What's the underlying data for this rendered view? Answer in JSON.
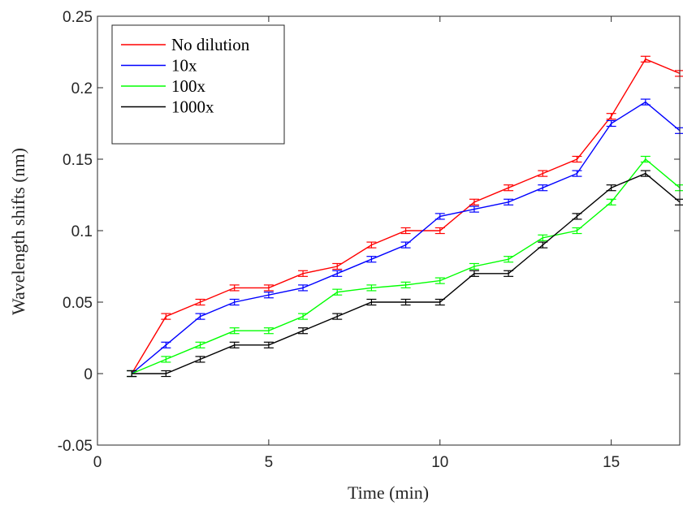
{
  "chart_data": {
    "type": "line",
    "xlabel": "Time (min)",
    "ylabel": "Wavelength shifts (nm)",
    "xlim": [
      0,
      17
    ],
    "ylim": [
      -0.05,
      0.25
    ],
    "xticks": [
      0,
      5,
      10,
      15
    ],
    "xtick_labels": [
      "0",
      "5",
      "10",
      "15"
    ],
    "yticks": [
      -0.05,
      0,
      0.05,
      0.1,
      0.15,
      0.2,
      0.25
    ],
    "ytick_labels": [
      "-0.05",
      "0",
      "0.05",
      "0.1",
      "0.15",
      "0.2",
      "0.25"
    ],
    "grid": false,
    "legend_position": "top-left",
    "x": [
      1,
      2,
      3,
      4,
      5,
      6,
      7,
      8,
      9,
      10,
      11,
      12,
      13,
      14,
      15,
      16,
      17
    ],
    "series": [
      {
        "name": "No dilution",
        "color": "#ff0000",
        "values": [
          0,
          0.04,
          0.05,
          0.06,
          0.06,
          0.07,
          0.075,
          0.09,
          0.1,
          0.1,
          0.12,
          0.13,
          0.14,
          0.15,
          0.18,
          0.22,
          0.21
        ],
        "error": 0.002
      },
      {
        "name": "10x",
        "color": "#0000ff",
        "values": [
          0,
          0.02,
          0.04,
          0.05,
          0.055,
          0.06,
          0.07,
          0.08,
          0.09,
          0.11,
          0.115,
          0.12,
          0.13,
          0.14,
          0.175,
          0.19,
          0.17
        ],
        "error": 0.002
      },
      {
        "name": "100x",
        "color": "#00ff00",
        "values": [
          0,
          0.01,
          0.02,
          0.03,
          0.03,
          0.04,
          0.057,
          0.06,
          0.062,
          0.065,
          0.075,
          0.08,
          0.095,
          0.1,
          0.12,
          0.15,
          0.13
        ],
        "error": 0.002
      },
      {
        "name": "1000x",
        "color": "#000000",
        "values": [
          0,
          0,
          0.01,
          0.02,
          0.02,
          0.03,
          0.04,
          0.05,
          0.05,
          0.05,
          0.07,
          0.07,
          0.09,
          0.11,
          0.13,
          0.14,
          0.12
        ],
        "error": 0.002
      }
    ]
  }
}
